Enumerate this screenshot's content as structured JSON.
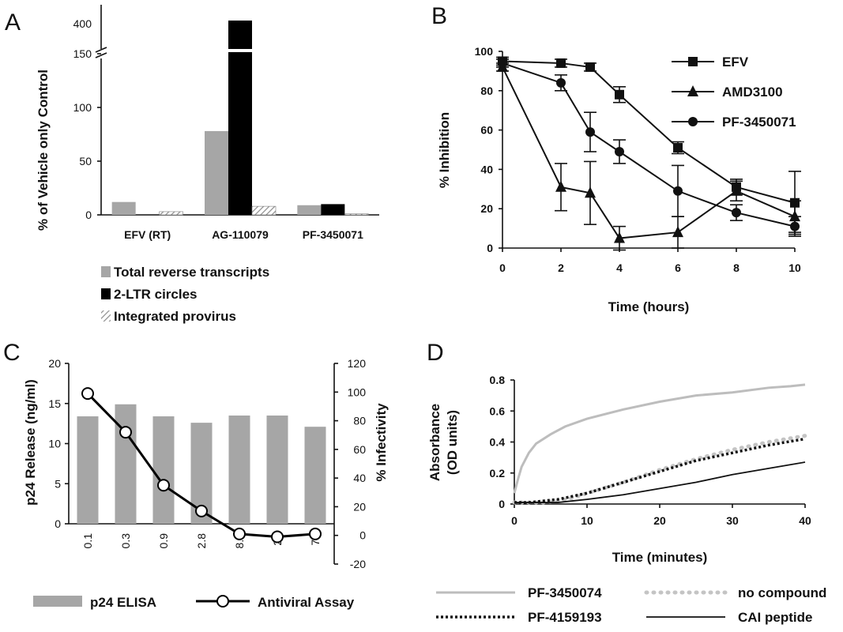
{
  "chart_data": [
    {
      "panel": "A",
      "type": "bar",
      "ylabel": "% of  Vehicle only Control",
      "categories": [
        "EFV (RT)",
        "AG-110079",
        "PF-3450071"
      ],
      "yticks_lower": [
        "0",
        "50",
        "100",
        "150"
      ],
      "ytick_upper": "400",
      "ylim_lower": [
        0,
        150
      ],
      "axis_break": "150-400",
      "series": [
        {
          "name": "Total reverse transcripts",
          "values": [
            12,
            78,
            9
          ],
          "color": "#a6a6a6",
          "pattern": "solid"
        },
        {
          "name": "2-LTR circles",
          "values": [
            0,
            420,
            10
          ],
          "color": "#000000",
          "pattern": "solid"
        },
        {
          "name": "Integrated provirus",
          "values": [
            3,
            8,
            1
          ],
          "color": "#bfbfbf",
          "pattern": "hatch"
        }
      ]
    },
    {
      "panel": "B",
      "type": "line",
      "xlabel": "Time (hours)",
      "ylabel": "% Inhibition",
      "xticks": [
        "0",
        "2",
        "4",
        "6",
        "8",
        "10"
      ],
      "yticks": [
        "0",
        "20",
        "40",
        "60",
        "80",
        "100"
      ],
      "xlim": [
        0,
        10
      ],
      "ylim": [
        0,
        100
      ],
      "legend": "top-right",
      "series": [
        {
          "name": "EFV",
          "marker": "square",
          "x": [
            0,
            2,
            3,
            4,
            6,
            8,
            10
          ],
          "y": [
            95,
            94,
            92,
            78,
            51,
            31,
            23
          ],
          "err": [
            2,
            2,
            2,
            4,
            3,
            4,
            16
          ]
        },
        {
          "name": "AMD3100",
          "marker": "triangle",
          "x": [
            0,
            2,
            3,
            4,
            6,
            8,
            10
          ],
          "y": [
            92,
            31,
            28,
            5,
            8,
            29,
            16
          ],
          "err": [
            2,
            12,
            16,
            6,
            8,
            5,
            8
          ]
        },
        {
          "name": "PF-3450071",
          "marker": "circle",
          "x": [
            0,
            2,
            3,
            4,
            6,
            8,
            10
          ],
          "y": [
            94,
            84,
            59,
            49,
            29,
            18,
            11
          ],
          "err": [
            2,
            4,
            10,
            6,
            13,
            4,
            5
          ]
        }
      ]
    },
    {
      "panel": "C",
      "type": "bar",
      "ylabel": "p24 Release (ng/ml)",
      "y2label": "% Infectivity",
      "categories": [
        "0.1",
        "0.3",
        "0.9",
        "2.8",
        "8.3",
        "25",
        "75"
      ],
      "yticks": [
        "0",
        "5",
        "10",
        "15",
        "20"
      ],
      "y2ticks": [
        "-20",
        "0",
        "20",
        "40",
        "60",
        "80",
        "100",
        "120"
      ],
      "ylim": [
        0,
        20
      ],
      "y2lim": [
        -20,
        120
      ],
      "series": [
        {
          "name": "p24 ELISA",
          "type": "bar",
          "axis": "left",
          "values": [
            13.4,
            14.9,
            13.4,
            12.6,
            13.5,
            13.5,
            12.1
          ],
          "color": "#a6a6a6"
        },
        {
          "name": "Antiviral Assay",
          "type": "line",
          "axis": "right",
          "marker": "open-circle",
          "values": [
            99,
            72,
            35,
            17,
            1,
            -1,
            1
          ]
        }
      ]
    },
    {
      "panel": "D",
      "type": "line",
      "xlabel": "Time (minutes)",
      "ylabel_line1": "Absorbance",
      "ylabel_line2": "(OD units)",
      "xticks": [
        "0",
        "10",
        "20",
        "30",
        "40"
      ],
      "yticks": [
        "0",
        "0.2",
        "0.4",
        "0.6",
        "0.8"
      ],
      "xlim": [
        0,
        40
      ],
      "ylim": [
        0,
        0.8
      ],
      "series": [
        {
          "name": "PF-3450074",
          "style": "solid-gray",
          "x": [
            0,
            0.5,
            1,
            2,
            3,
            5,
            7,
            10,
            15,
            20,
            25,
            30,
            35,
            38,
            40
          ],
          "y": [
            0.07,
            0.16,
            0.24,
            0.33,
            0.39,
            0.45,
            0.5,
            0.55,
            0.61,
            0.66,
            0.7,
            0.72,
            0.75,
            0.76,
            0.77
          ]
        },
        {
          "name": "no compound",
          "style": "dotted-gray",
          "x": [
            0,
            2,
            4,
            6,
            8,
            10,
            15,
            20,
            25,
            30,
            35,
            40
          ],
          "y": [
            0.01,
            0.01,
            0.01,
            0.02,
            0.04,
            0.07,
            0.14,
            0.22,
            0.29,
            0.35,
            0.4,
            0.44
          ]
        },
        {
          "name": "PF-4159193",
          "style": "dotted-black",
          "x": [
            0,
            2,
            4,
            6,
            8,
            10,
            15,
            20,
            25,
            30,
            35,
            40
          ],
          "y": [
            0.01,
            0.01,
            0.02,
            0.03,
            0.05,
            0.07,
            0.14,
            0.21,
            0.28,
            0.33,
            0.38,
            0.42
          ]
        },
        {
          "name": "CAI peptide",
          "style": "solid-black",
          "x": [
            0,
            2,
            4,
            6,
            8,
            10,
            15,
            20,
            25,
            30,
            35,
            40
          ],
          "y": [
            0.01,
            0.01,
            0.01,
            0.01,
            0.02,
            0.03,
            0.06,
            0.1,
            0.14,
            0.19,
            0.23,
            0.27
          ]
        }
      ]
    }
  ],
  "panels": {
    "a": "A",
    "b": "B",
    "c": "C",
    "d": "D"
  },
  "colors": {
    "gray_bar": "#a6a6a6",
    "black_bar": "#000000",
    "light_line": "#bdbdbd",
    "dotted": "#bfbfbf"
  }
}
